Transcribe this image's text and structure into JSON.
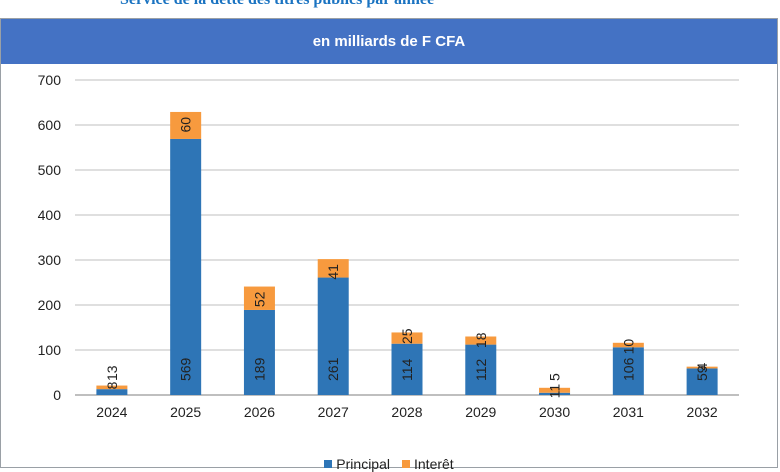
{
  "page": {
    "title": "Service de la dette des titres publics par année",
    "subtitle": "en milliards de F CFA"
  },
  "chart_data": {
    "type": "bar",
    "stacked": true,
    "categories": [
      "2024",
      "2025",
      "2026",
      "2027",
      "2028",
      "2029",
      "2030",
      "2031",
      "2032"
    ],
    "series": [
      {
        "name": "Principal",
        "color": "#2e75b6",
        "values": [
          13,
          569,
          189,
          261,
          114,
          112,
          5,
          106,
          59
        ]
      },
      {
        "name": "Interêt",
        "color": "#f79a3e",
        "values": [
          8,
          60,
          52,
          41,
          25,
          18,
          11,
          10,
          4
        ]
      }
    ],
    "ylim": [
      0,
      700
    ],
    "yticks": [
      0,
      100,
      200,
      300,
      400,
      500,
      600,
      700
    ],
    "data_labels": {
      "Principal": [
        "13",
        "569",
        "189",
        "261",
        "114",
        "112",
        "5",
        "106",
        "59"
      ],
      "Interêt": [
        "8",
        "60",
        "52",
        "41",
        "25",
        "18",
        "11",
        "10",
        "4"
      ]
    },
    "grid": true,
    "legend": "bottom",
    "xlabel": "",
    "ylabel": ""
  }
}
